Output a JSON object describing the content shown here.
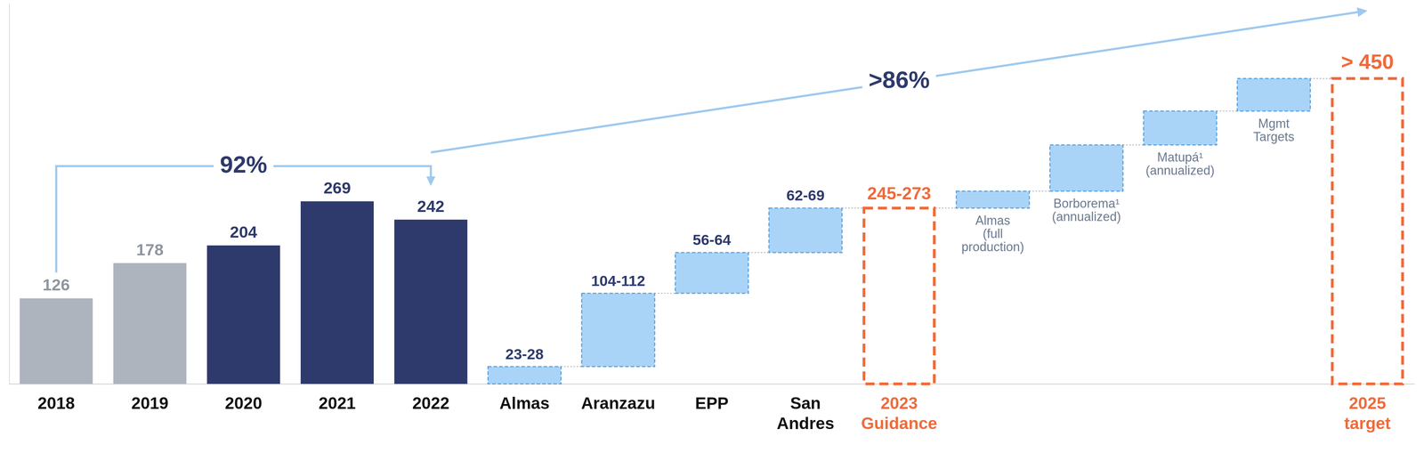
{
  "chart_data": {
    "type": "bar",
    "categories": [
      "2018",
      "2019",
      "2020",
      "2021",
      "2022",
      "Almas",
      "Aranzazu",
      "EPP",
      "San Andres",
      "2023 Guidance",
      null,
      null,
      null,
      null,
      "2025 target"
    ],
    "ylim": [
      0,
      560
    ],
    "yticks": [
      0
    ],
    "grid": false,
    "tick_labels": "x",
    "series": [
      {
        "type": "bar",
        "values": [
          126,
          178,
          204,
          269,
          242,
          null,
          null,
          null,
          null,
          null,
          null,
          null,
          null,
          null,
          null
        ],
        "colors": [
          "#aeb4bd",
          "#aeb4bd",
          "#2e3a6c",
          "#2e3a6c",
          "#2e3a6c",
          null,
          null,
          null,
          null,
          null,
          null,
          null,
          null,
          null,
          null
        ],
        "data_labels": true
      },
      {
        "type": "waterfall",
        "color": "#a9d4f7",
        "low": [
          null,
          null,
          null,
          null,
          null,
          23,
          104,
          56,
          62,
          null,
          null,
          null,
          null,
          null,
          null
        ],
        "high": [
          null,
          null,
          null,
          null,
          null,
          28,
          112,
          64,
          69,
          null,
          null,
          null,
          null,
          null,
          null
        ],
        "value_labels": [
          null,
          null,
          null,
          null,
          null,
          "23-28",
          "104-112",
          "56-64",
          "62-69",
          null,
          null,
          null,
          null,
          null,
          null
        ],
        "data_labels": true
      },
      {
        "type": "waterfall",
        "color": "#a9d4f7",
        "values": [
          null,
          null,
          null,
          null,
          null,
          null,
          null,
          null,
          null,
          null,
          25,
          68,
          50,
          48,
          null
        ],
        "labels": [
          null,
          null,
          null,
          null,
          null,
          null,
          null,
          null,
          null,
          null,
          "Almas (full production)",
          "Borborema¹ (annualized)",
          "Matupá¹ (annualized)",
          "Mgmt Targets",
          null
        ]
      },
      {
        "type": "total",
        "color": "#ef6b3b",
        "low": [
          null,
          null,
          null,
          null,
          null,
          null,
          null,
          null,
          null,
          245,
          null,
          null,
          null,
          null,
          450
        ],
        "high": [
          null,
          null,
          null,
          null,
          null,
          null,
          null,
          null,
          null,
          273,
          null,
          null,
          null,
          null,
          null
        ],
        "value_labels": [
          null,
          null,
          null,
          null,
          null,
          null,
          null,
          null,
          null,
          "245-273",
          null,
          null,
          null,
          null,
          "> 450"
        ],
        "data_labels": true
      }
    ],
    "annotations": [
      {
        "text": "92%",
        "from": "2018",
        "to": "2022"
      },
      {
        "text": ">86%",
        "from": "2022",
        "to": "2025 target"
      }
    ]
  }
}
